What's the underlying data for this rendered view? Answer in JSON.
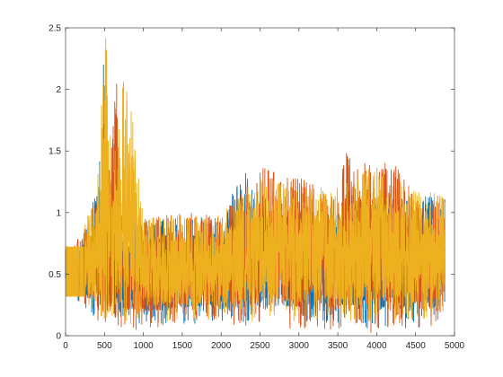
{
  "chart_data": {
    "type": "line",
    "title": "",
    "xlabel": "",
    "ylabel": "",
    "xlim": [
      0,
      5000
    ],
    "ylim": [
      0,
      2.5
    ],
    "x_ticks": [
      0,
      500,
      1000,
      1500,
      2000,
      2500,
      3000,
      3500,
      4000,
      4500,
      5000
    ],
    "x_tick_labels": [
      "0",
      "500",
      "1000",
      "1500",
      "2000",
      "2500",
      "3000",
      "3500",
      "4000",
      "4500",
      "5000"
    ],
    "y_ticks": [
      0,
      0.5,
      1,
      1.5,
      2,
      2.5
    ],
    "y_tick_labels": [
      "0",
      "0.5",
      "1",
      "1.5",
      "2",
      "2.5"
    ],
    "grid": false,
    "legend": "none",
    "x_range_of_data": [
      0,
      4880
    ],
    "series": [
      {
        "color": "#0072BD",
        "x": [
          0,
          200,
          400,
          500,
          520,
          600,
          700,
          800,
          1000,
          1500,
          2000,
          2300,
          2500,
          3000,
          3500,
          4000,
          4500,
          4880
        ],
        "y_max": [
          0.72,
          0.78,
          1.2,
          2.5,
          1.1,
          1.43,
          0.95,
          0.9,
          0.93,
          0.97,
          0.95,
          1.37,
          1.05,
          1.0,
          1.02,
          1.1,
          1.15,
          1.13
        ],
        "y_min": [
          0.32,
          0.25,
          0.12,
          0.05,
          0.08,
          0.05,
          0.05,
          0.08,
          0.1,
          0.1,
          0.1,
          0.1,
          0.1,
          0.1,
          0.1,
          0.05,
          0.05,
          0.1
        ]
      },
      {
        "color": "#D95319",
        "x": [
          0,
          200,
          400,
          500,
          600,
          650,
          700,
          800,
          1000,
          1500,
          2000,
          2500,
          3000,
          3500,
          3600,
          4000,
          4200,
          4500,
          4880
        ],
        "y_max": [
          0.72,
          0.8,
          1.1,
          1.3,
          1.55,
          2.17,
          1.2,
          0.9,
          0.95,
          1.0,
          0.98,
          1.37,
          1.3,
          1.1,
          1.5,
          1.35,
          1.47,
          1.1,
          1.12
        ],
        "y_min": [
          0.32,
          0.25,
          0.1,
          0.05,
          0.05,
          0.05,
          0.05,
          0.05,
          0.05,
          0.1,
          0.1,
          0.05,
          0.05,
          0.05,
          0.1,
          0.0,
          0.05,
          0.05,
          0.1
        ]
      },
      {
        "color": "#EDB120",
        "x": [
          0,
          200,
          400,
          520,
          600,
          750,
          850,
          1000,
          1500,
          2000,
          2500,
          3000,
          3500,
          4000,
          4500,
          4880
        ],
        "y_max": [
          0.72,
          0.8,
          1.2,
          2.5,
          1.3,
          2.17,
          1.87,
          0.95,
          0.98,
          0.98,
          1.3,
          1.2,
          1.2,
          1.4,
          1.2,
          1.13
        ],
        "y_min": [
          0.32,
          0.28,
          0.12,
          0.08,
          0.1,
          0.08,
          0.1,
          0.12,
          0.12,
          0.12,
          0.12,
          0.12,
          0.12,
          0.12,
          0.12,
          0.12
        ]
      }
    ]
  }
}
